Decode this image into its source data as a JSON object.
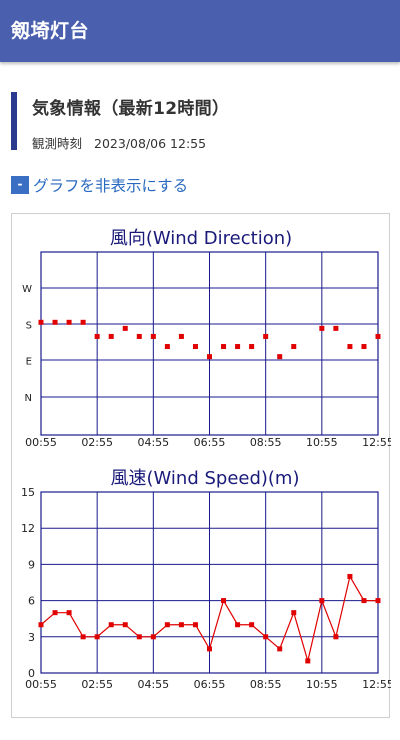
{
  "app": {
    "title": "剱埼灯台"
  },
  "section": {
    "heading": "気象情報（最新12時間）",
    "observation_label": "観測時刻",
    "observation_time": "2023/08/06 12:55"
  },
  "toggle": {
    "icon": "-",
    "label": "グラフを非表示にする"
  },
  "colors": {
    "header": "#4a5fae",
    "accent": "#2b3a8f",
    "link": "#2a6ac0",
    "series": "#e00000",
    "grid": "#1a1a8c"
  },
  "chart_data": [
    {
      "type": "scatter",
      "title": "風向(Wind Direction)",
      "y_categories": [
        "W",
        "S",
        "E",
        "N"
      ],
      "y_values_order_note": "",
      "x_tick_labels": [
        "00:55",
        "02:55",
        "04:55",
        "06:55",
        "08:55",
        "10:55",
        "12:55"
      ],
      "grid": true,
      "series": [
        {
          "values": [
            {
              "x": "00:55",
              "y": 185
            },
            {
              "x": "01:25",
              "y": 185
            },
            {
              "x": "01:55",
              "y": 185
            },
            {
              "x": "02:25",
              "y": 185
            },
            {
              "x": "02:55",
              "y": 150
            },
            {
              "x": "03:25",
              "y": 150
            },
            {
              "x": "03:55",
              "y": 170
            },
            {
              "x": "04:25",
              "y": 150
            },
            {
              "x": "04:55",
              "y": 150
            },
            {
              "x": "05:25",
              "y": 125
            },
            {
              "x": "05:55",
              "y": 150
            },
            {
              "x": "06:25",
              "y": 125
            },
            {
              "x": "06:55",
              "y": 100
            },
            {
              "x": "07:25",
              "y": 125
            },
            {
              "x": "07:55",
              "y": 125
            },
            {
              "x": "08:25",
              "y": 125
            },
            {
              "x": "08:55",
              "y": 150
            },
            {
              "x": "09:25",
              "y": 100
            },
            {
              "x": "09:55",
              "y": 125
            },
            {
              "x": "10:55",
              "y": 170
            },
            {
              "x": "11:25",
              "y": 170
            },
            {
              "x": "11:55",
              "y": 125
            },
            {
              "x": "12:25",
              "y": 125
            },
            {
              "x": "12:55",
              "y": 150
            }
          ]
        }
      ]
    },
    {
      "type": "line",
      "title": "風速(Wind Speed)(m)",
      "x_tick_labels": [
        "00:55",
        "02:55",
        "04:55",
        "06:55",
        "08:55",
        "10:55",
        "12:55"
      ],
      "y_ticks": [
        0,
        3,
        6,
        9,
        12,
        15
      ],
      "ylim": [
        0,
        15
      ],
      "grid": true,
      "series": [
        {
          "values": [
            {
              "x": "00:55",
              "y": 4
            },
            {
              "x": "01:25",
              "y": 5
            },
            {
              "x": "01:55",
              "y": 5
            },
            {
              "x": "02:25",
              "y": 3
            },
            {
              "x": "02:55",
              "y": 3
            },
            {
              "x": "03:25",
              "y": 4
            },
            {
              "x": "03:55",
              "y": 4
            },
            {
              "x": "04:25",
              "y": 3
            },
            {
              "x": "04:55",
              "y": 3
            },
            {
              "x": "05:25",
              "y": 4
            },
            {
              "x": "05:55",
              "y": 4
            },
            {
              "x": "06:25",
              "y": 4
            },
            {
              "x": "06:55",
              "y": 2
            },
            {
              "x": "07:25",
              "y": 6
            },
            {
              "x": "07:55",
              "y": 4
            },
            {
              "x": "08:25",
              "y": 4
            },
            {
              "x": "08:55",
              "y": 3
            },
            {
              "x": "09:25",
              "y": 2
            },
            {
              "x": "09:55",
              "y": 5
            },
            {
              "x": "10:25",
              "y": 1
            },
            {
              "x": "10:55",
              "y": 6
            },
            {
              "x": "11:25",
              "y": 3
            },
            {
              "x": "11:55",
              "y": 8
            },
            {
              "x": "12:25",
              "y": 6
            },
            {
              "x": "12:55",
              "y": 6
            }
          ]
        }
      ]
    }
  ]
}
